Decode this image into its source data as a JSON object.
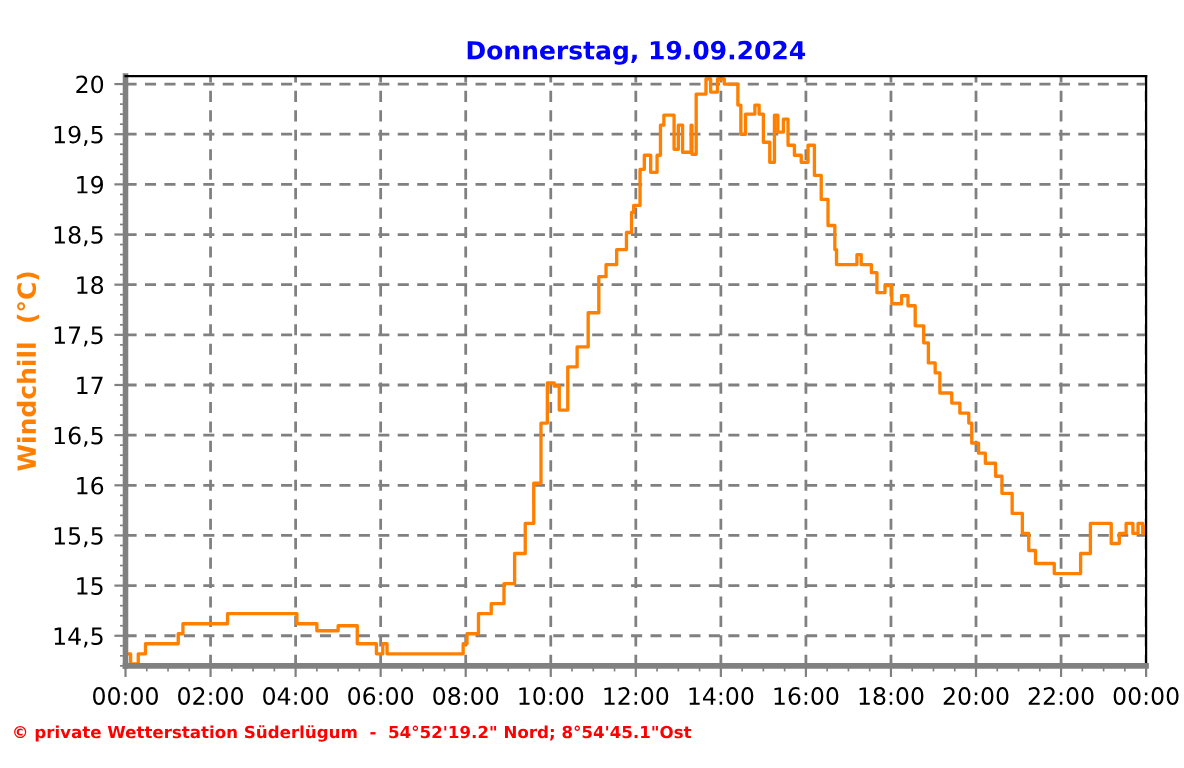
{
  "chart_data": {
    "type": "step",
    "title": "Donnerstag, 19.09.2024",
    "ylabel": "Windchill  (°C)",
    "annotations": [
      "© private Wetterstation Süderlügum  -  54°52'19.2\" Nord; 8°54'45.1\"Ost"
    ],
    "xlim": [
      0,
      24
    ],
    "ylim": [
      14.2,
      20.08
    ],
    "xticks": [
      {
        "value": 0,
        "label": "00:00"
      },
      {
        "value": 2,
        "label": "02:00"
      },
      {
        "value": 4,
        "label": "04:00"
      },
      {
        "value": 6,
        "label": "06:00"
      },
      {
        "value": 8,
        "label": "08:00"
      },
      {
        "value": 10,
        "label": "10:00"
      },
      {
        "value": 12,
        "label": "12:00"
      },
      {
        "value": 14,
        "label": "14:00"
      },
      {
        "value": 16,
        "label": "16:00"
      },
      {
        "value": 18,
        "label": "18:00"
      },
      {
        "value": 20,
        "label": "20:00"
      },
      {
        "value": 22,
        "label": "22:00"
      },
      {
        "value": 24,
        "label": "00:00"
      }
    ],
    "yticks": [
      {
        "value": 14.5,
        "label": "14,5"
      },
      15,
      {
        "value": 15.5,
        "label": "15,5"
      },
      16,
      {
        "value": 16.5,
        "label": "16,5"
      },
      17,
      {
        "value": 17.5,
        "label": "17,5"
      },
      18,
      {
        "value": 18.5,
        "label": "18,5"
      },
      19,
      {
        "value": 19.5,
        "label": "19,5"
      },
      20
    ],
    "grid": true,
    "line_style": "solid",
    "marker": "none",
    "x": [
      0,
      0.12,
      0.3,
      0.47,
      1.24,
      1.35,
      2.4,
      4.03,
      4.1,
      4.5,
      5.0,
      5.45,
      5.9,
      6.05,
      6.15,
      7.94,
      8.03,
      8.3,
      8.6,
      8.9,
      9.15,
      9.4,
      9.6,
      9.77,
      9.92,
      10.08,
      10.2,
      10.4,
      10.62,
      10.88,
      11.13,
      11.3,
      11.55,
      11.78,
      11.9,
      11.95,
      12.1,
      12.2,
      12.35,
      12.5,
      12.58,
      12.66,
      12.9,
      13.0,
      13.1,
      13.3,
      13.32,
      13.42,
      13.57,
      13.65,
      13.76,
      13.92,
      14.08,
      14.24,
      14.4,
      14.47,
      14.58,
      14.8,
      14.9,
      15.0,
      15.15,
      15.26,
      15.34,
      15.47,
      15.58,
      15.73,
      15.89,
      16.05,
      16.2,
      16.36,
      16.52,
      16.68,
      16.72,
      17.15,
      17.2,
      17.3,
      17.54,
      17.67,
      17.86,
      18.02,
      18.25,
      18.4,
      18.57,
      18.77,
      18.88,
      19.04,
      19.15,
      19.43,
      19.62,
      19.83,
      19.9,
      20.06,
      20.22,
      20.46,
      20.61,
      20.85,
      21.09,
      21.24,
      21.4,
      21.84,
      22.35,
      22.46,
      22.69,
      23.09,
      23.18,
      23.37,
      23.53,
      23.69,
      23.81,
      23.92,
      24.0
    ],
    "series": [
      {
        "color": "#ff8000",
        "values": [
          14.32,
          14.22,
          14.32,
          14.42,
          14.52,
          14.62,
          14.72,
          14.62,
          14.62,
          14.55,
          14.6,
          14.42,
          14.32,
          14.42,
          14.32,
          14.42,
          14.52,
          14.72,
          14.82,
          15.02,
          15.32,
          15.62,
          16.02,
          16.62,
          17.02,
          16.99,
          16.75,
          17.18,
          17.38,
          17.72,
          18.08,
          18.2,
          18.35,
          18.52,
          18.72,
          18.79,
          19.15,
          19.29,
          19.12,
          19.29,
          19.59,
          19.69,
          19.35,
          19.59,
          19.32,
          19.59,
          19.3,
          19.9,
          19.9,
          20.05,
          19.92,
          20.05,
          20.0,
          20.0,
          19.79,
          19.5,
          19.7,
          19.79,
          19.7,
          19.42,
          19.22,
          19.69,
          19.52,
          19.65,
          19.39,
          19.29,
          19.22,
          19.39,
          19.09,
          18.85,
          18.59,
          18.35,
          18.2,
          18.2,
          18.3,
          18.2,
          18.12,
          17.92,
          17.99,
          17.81,
          17.89,
          17.79,
          17.59,
          17.42,
          17.22,
          17.12,
          16.92,
          16.82,
          16.72,
          16.62,
          16.42,
          16.32,
          16.22,
          16.09,
          15.92,
          15.72,
          15.52,
          15.35,
          15.22,
          15.12,
          15.12,
          15.32,
          15.62,
          15.62,
          15.42,
          15.52,
          15.62,
          15.52,
          15.62,
          15.52,
          15.59
        ]
      }
    ]
  }
}
